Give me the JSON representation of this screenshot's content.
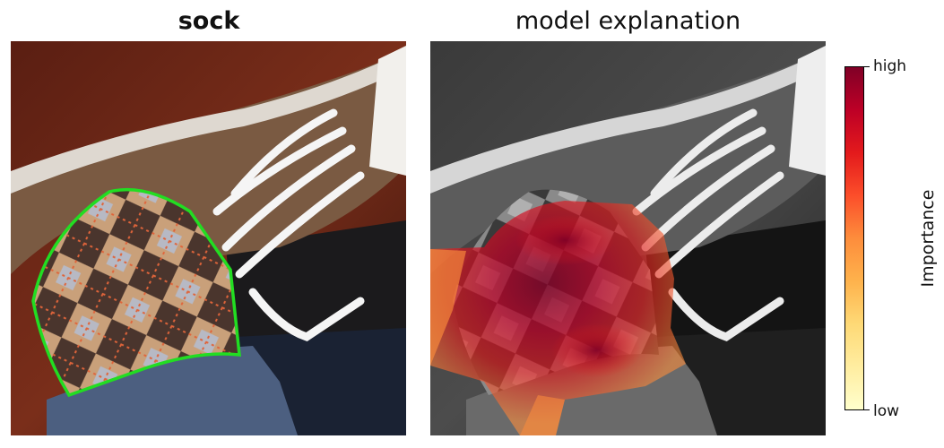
{
  "panels": {
    "left_title": "sock",
    "right_title": "model explanation"
  },
  "colorbar": {
    "label": "Importance",
    "high_label": "high",
    "low_label": "low",
    "colors": [
      "#800026",
      "#bd0026",
      "#e31a1c",
      "#fc4e2a",
      "#fd8d3c",
      "#feb24c",
      "#fed976",
      "#ffeda0",
      "#ffffcc"
    ]
  },
  "image": {
    "subject": "sneaker-with-argyle-sock",
    "outline_color": "#22dd22",
    "heatmap_colormap": "YlOrRd"
  }
}
